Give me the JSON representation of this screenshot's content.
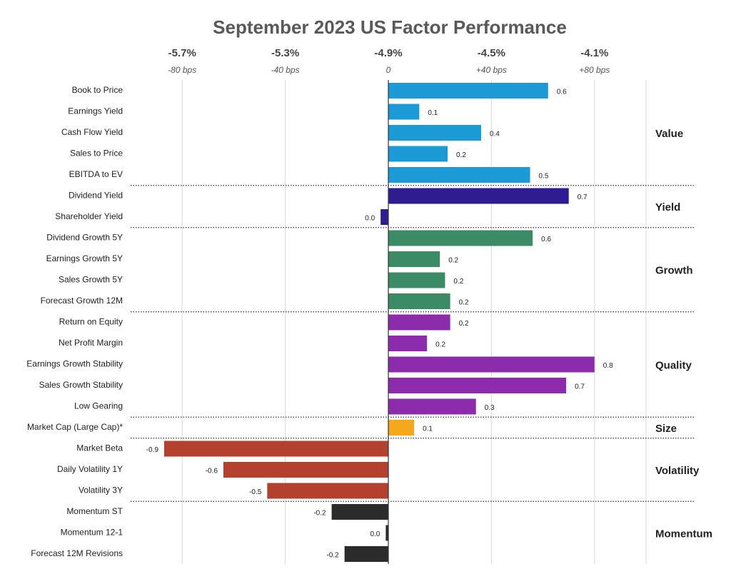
{
  "chart_data": {
    "type": "bar",
    "orientation": "horizontal",
    "title": "September 2023 US Factor Performance",
    "xlim": [
      -100,
      100
    ],
    "xticks": [
      {
        "value": -80,
        "label": "-80 bps"
      },
      {
        "value": -40,
        "label": "-40 bps"
      },
      0,
      {
        "value": 40,
        "label": "+40 bps"
      },
      {
        "value": 80,
        "label": "+80 bps"
      }
    ],
    "x2lim": [
      -5.9,
      -3.9
    ],
    "x2ticks": [
      {
        "value": -5.7,
        "label": "-5.7%"
      },
      {
        "value": -5.3,
        "label": "-5.3%"
      },
      {
        "value": -4.9,
        "label": "-4.9%"
      },
      {
        "value": -4.5,
        "label": "-4.5%"
      },
      {
        "value": -4.1,
        "label": "-4.1%"
      }
    ],
    "grid": true,
    "series": [
      {
        "name": "Value",
        "color": "#1c9ad6",
        "categories": [
          "Book to Price",
          "Earnings Yield",
          "Cash Flow Yield",
          "Sales to Price",
          "EBITDA to EV"
        ],
        "values": [
          62,
          12,
          36,
          23,
          55
        ],
        "value_labels": [
          "0.6",
          "0.1",
          "0.4",
          "0.2",
          "0.5"
        ]
      },
      {
        "name": "Yield",
        "color": "#2f1c92",
        "categories": [
          "Dividend Yield",
          "Shareholder Yield"
        ],
        "values": [
          70,
          -3
        ],
        "value_labels": [
          "0.7",
          "0.0"
        ]
      },
      {
        "name": "Growth",
        "color": "#3b8b66",
        "categories": [
          "Dividend Growth 5Y",
          "Earnings Growth 5Y",
          "Sales Growth 5Y",
          "Forecast Growth 12M"
        ],
        "values": [
          56,
          20,
          22,
          24
        ],
        "value_labels": [
          "0.6",
          "0.2",
          "0.2",
          "0.2"
        ]
      },
      {
        "name": "Quality",
        "color": "#8c2bab",
        "categories": [
          "Return on Equity",
          "Net Profit Margin",
          "Earnings Growth Stability",
          "Sales Growth Stability",
          "Low Gearing"
        ],
        "values": [
          24,
          15,
          80,
          69,
          34
        ],
        "value_labels": [
          "0.2",
          "0.2",
          "0.8",
          "0.7",
          "0.3"
        ]
      },
      {
        "name": "Size",
        "color": "#f5a81c",
        "categories": [
          "Market Cap (Large Cap)*"
        ],
        "values": [
          10
        ],
        "value_labels": [
          "0.1"
        ]
      },
      {
        "name": "Volatility",
        "color": "#b4412d",
        "categories": [
          "Market Beta",
          "Daily Volatility 1Y",
          "Volatility 3Y"
        ],
        "values": [
          -87,
          -64,
          -47
        ],
        "value_labels": [
          "-0.9",
          "-0.6",
          "-0.5"
        ]
      },
      {
        "name": "Momentum",
        "color": "#2b2b2b",
        "categories": [
          "Momentum ST",
          "Momentum 12-1",
          "Forecast 12M Revisions"
        ],
        "values": [
          -22,
          -1,
          -17
        ],
        "value_labels": [
          "-0.2",
          "0.0",
          "-0.2"
        ]
      }
    ]
  }
}
